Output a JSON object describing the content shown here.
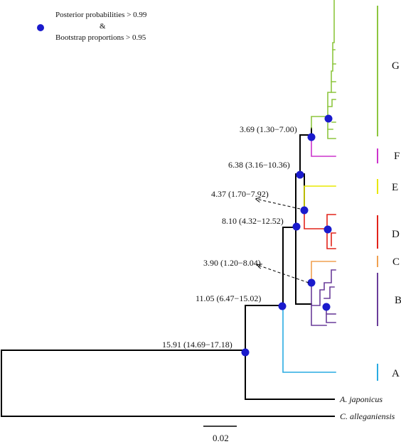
{
  "legend": {
    "line1": "Posterior probabilities > 0.99",
    "line2": "&",
    "line3": "Bootstrap proportions > 0.95"
  },
  "node_labels": [
    "15.91 (14.69−17.18)",
    "11.05 (6.47−15.02)",
    "8.10 (4.32−12.52)",
    "6.38 (3.16−10.36)",
    "3.69 (1.30−7.00)",
    "4.37 (1.70−7.92)",
    "3.90 (1.20−8.04)"
  ],
  "clades": [
    {
      "label": "G",
      "color": "#8dc63f"
    },
    {
      "label": "F",
      "color": "#cc33cc"
    },
    {
      "label": "E",
      "color": "#e8e800"
    },
    {
      "label": "D",
      "color": "#e2231a"
    },
    {
      "label": "C",
      "color": "#f0a050"
    },
    {
      "label": "B",
      "color": "#6a3d9a"
    },
    {
      "label": "A",
      "color": "#29abe2"
    }
  ],
  "outgroups": [
    "A. japonicus",
    "C. alleganiensis"
  ],
  "scale_bar": "0.02",
  "colors": {
    "node_dot": "#1a1acc",
    "branch": "#000000",
    "arrow": "#000000"
  }
}
